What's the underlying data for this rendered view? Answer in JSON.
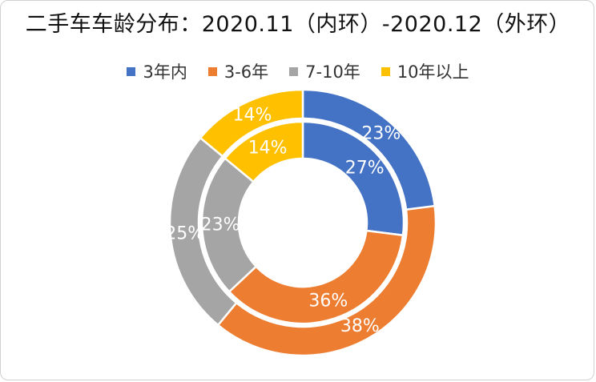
{
  "chart_data": {
    "type": "pie",
    "title": "二手车车龄分布：2020.11（内环）-2020.12（外环）",
    "categories": [
      "3年内",
      "3-6年",
      "7-10年",
      "10年以上"
    ],
    "colors": [
      "#4472C4",
      "#ED7D31",
      "#A5A5A5",
      "#FFC000"
    ],
    "series": [
      {
        "ring": "inner",
        "values": [
          27,
          36,
          23,
          14
        ],
        "labels": [
          "27%",
          "36%",
          "23%",
          "14%"
        ]
      },
      {
        "ring": "outer",
        "values": [
          23,
          38,
          25,
          14
        ],
        "labels": [
          "23%",
          "38%",
          "25%",
          "14%"
        ]
      }
    ],
    "legend_position": "top"
  }
}
